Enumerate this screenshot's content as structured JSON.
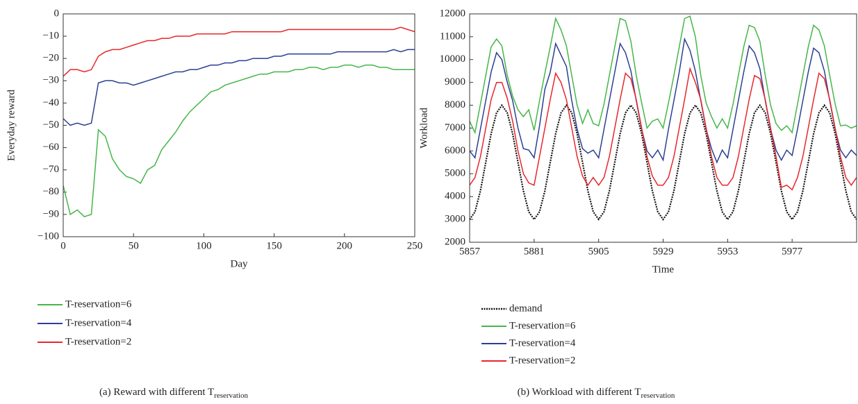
{
  "chart_data": [
    {
      "type": "line",
      "xlabel": "Day",
      "ylabel": "Everyday reward",
      "caption": {
        "text": "(a)  Reward with different T",
        "subscript": "reservation"
      },
      "legend": "below",
      "xlim": [
        0,
        250
      ],
      "xticks": [
        0,
        50,
        100,
        150,
        200,
        250
      ],
      "ylim": [
        -100,
        0
      ],
      "yticks": [
        {
          "value": -100,
          "label": "−100"
        },
        {
          "value": -90,
          "label": "−90"
        },
        {
          "value": -80,
          "label": "−80"
        },
        {
          "value": -70,
          "label": "−70"
        },
        {
          "value": -60,
          "label": "−60"
        },
        {
          "value": -50,
          "label": "−50"
        },
        {
          "value": -40,
          "label": "−40"
        },
        {
          "value": -30,
          "label": "−30"
        },
        {
          "value": -20,
          "label": "−20"
        },
        {
          "value": -10,
          "label": "−10"
        },
        0
      ],
      "x": [
        0,
        5,
        10,
        15,
        20,
        25,
        30,
        35,
        40,
        45,
        50,
        55,
        60,
        65,
        70,
        75,
        80,
        85,
        90,
        95,
        100,
        105,
        110,
        115,
        120,
        125,
        130,
        135,
        140,
        145,
        150,
        155,
        160,
        165,
        170,
        175,
        180,
        185,
        190,
        195,
        200,
        205,
        210,
        215,
        220,
        225,
        230,
        235,
        240,
        245,
        250
      ],
      "series": [
        {
          "name": "T-reservation=6",
          "color": "#46b649",
          "style": "solid",
          "values": [
            -77,
            -90,
            -88,
            -91,
            -90,
            -52,
            -55,
            -65,
            -70,
            -73,
            -74,
            -76,
            -70,
            -68,
            -61,
            -57,
            -53,
            -48,
            -44,
            -41,
            -38,
            -35,
            -34,
            -32,
            -31,
            -30,
            -29,
            -28,
            -27,
            -27,
            -26,
            -26,
            -26,
            -25,
            -25,
            -24,
            -24,
            -25,
            -24,
            -24,
            -23,
            -23,
            -24,
            -23,
            -23,
            -24,
            -24,
            -25,
            -25,
            -25,
            -25
          ]
        },
        {
          "name": "T-reservation=4",
          "color": "#2b3f93",
          "style": "solid",
          "values": [
            -47,
            -50,
            -49,
            -50,
            -49,
            -31,
            -30,
            -30,
            -31,
            -31,
            -32,
            -31,
            -30,
            -29,
            -28,
            -27,
            -26,
            -26,
            -25,
            -25,
            -24,
            -23,
            -23,
            -22,
            -22,
            -21,
            -21,
            -20,
            -20,
            -20,
            -19,
            -19,
            -18,
            -18,
            -18,
            -18,
            -18,
            -18,
            -18,
            -17,
            -17,
            -17,
            -17,
            -17,
            -17,
            -17,
            -17,
            -16,
            -17,
            -16,
            -16
          ]
        },
        {
          "name": "T-reservation=2",
          "color": "#e8262a",
          "style": "solid",
          "values": [
            -28,
            -25,
            -25,
            -26,
            -25,
            -19,
            -17,
            -16,
            -16,
            -15,
            -14,
            -13,
            -12,
            -12,
            -11,
            -11,
            -10,
            -10,
            -10,
            -9,
            -9,
            -9,
            -9,
            -9,
            -8,
            -8,
            -8,
            -8,
            -8,
            -8,
            -8,
            -8,
            -7,
            -7,
            -7,
            -7,
            -7,
            -7,
            -7,
            -7,
            -7,
            -7,
            -7,
            -7,
            -7,
            -7,
            -7,
            -7,
            -6,
            -7,
            -8
          ]
        }
      ]
    },
    {
      "type": "line",
      "xlabel": "Time",
      "ylabel": "Workload",
      "caption": {
        "text": "(b)  Workload with different T",
        "subscript": "reservation"
      },
      "legend": "below",
      "xlim": [
        5857,
        6001
      ],
      "xticks": [
        5857,
        5881,
        5905,
        5929,
        5953,
        5977
      ],
      "ylim": [
        2000,
        12000
      ],
      "yticks": [
        2000,
        3000,
        4000,
        5000,
        6000,
        7000,
        8000,
        9000,
        10000,
        11000,
        12000
      ],
      "x": [
        5857,
        5859,
        5861,
        5863,
        5865,
        5867,
        5869,
        5871,
        5873,
        5875,
        5877,
        5879,
        5881,
        5883,
        5885,
        5887,
        5889,
        5891,
        5893,
        5895,
        5897,
        5899,
        5901,
        5903,
        5905,
        5907,
        5909,
        5911,
        5913,
        5915,
        5917,
        5919,
        5921,
        5923,
        5925,
        5927,
        5929,
        5931,
        5933,
        5935,
        5937,
        5939,
        5941,
        5943,
        5945,
        5947,
        5949,
        5951,
        5953,
        5955,
        5957,
        5959,
        5961,
        5963,
        5965,
        5967,
        5969,
        5971,
        5973,
        5975,
        5977,
        5979,
        5981,
        5983,
        5985,
        5987,
        5989,
        5991,
        5993,
        5995,
        5997,
        5999,
        6001
      ],
      "series": [
        {
          "name": "demand",
          "color": "#111111",
          "style": "dotted",
          "values": [
            3000,
            3335,
            4250,
            5500,
            6750,
            7665,
            8000,
            7665,
            6750,
            5500,
            4250,
            3335,
            3000,
            3335,
            4250,
            5500,
            6750,
            7665,
            8000,
            7665,
            6750,
            5500,
            4250,
            3335,
            3000,
            3335,
            4250,
            5500,
            6750,
            7665,
            8000,
            7665,
            6750,
            5500,
            4250,
            3335,
            3000,
            3335,
            4250,
            5500,
            6750,
            7665,
            8000,
            7665,
            6750,
            5500,
            4250,
            3335,
            3000,
            3335,
            4250,
            5500,
            6750,
            7665,
            8000,
            7665,
            6750,
            5500,
            4250,
            3335,
            3000,
            3335,
            4250,
            5500,
            6750,
            7665,
            8000,
            7665,
            6750,
            5500,
            4250,
            3335,
            3000
          ]
        },
        {
          "name": "T-reservation=6",
          "color": "#46b649",
          "style": "solid",
          "values": [
            7300,
            6800,
            8050,
            9300,
            10550,
            10900,
            10600,
            9300,
            8400,
            7800,
            7500,
            7800,
            6900,
            8200,
            9400,
            10550,
            11800,
            11300,
            10600,
            9300,
            8000,
            7200,
            7800,
            7200,
            7100,
            8050,
            9300,
            10550,
            11800,
            11700,
            10800,
            9300,
            8100,
            7000,
            7300,
            7400,
            7000,
            8100,
            9300,
            10550,
            11800,
            11900,
            11000,
            9300,
            8100,
            7500,
            7000,
            7400,
            7000,
            8050,
            9300,
            10550,
            11500,
            11400,
            10800,
            9300,
            8000,
            7200,
            6900,
            7100,
            6800,
            8050,
            9300,
            10550,
            11500,
            11300,
            10600,
            9300,
            8050,
            7100,
            7135,
            7000,
            7100
          ]
        },
        {
          "name": "T-reservation=4",
          "color": "#2b3f93",
          "style": "solid",
          "values": [
            6000,
            5700,
            6950,
            8200,
            9450,
            10300,
            10000,
            9000,
            8200,
            7000,
            6100,
            6035,
            5700,
            7100,
            8700,
            9450,
            10700,
            10200,
            9700,
            8200,
            6950,
            6100,
            5900,
            6035,
            5700,
            6950,
            8200,
            9450,
            10700,
            10300,
            9500,
            8200,
            6950,
            6000,
            5700,
            6035,
            5600,
            6950,
            8200,
            9450,
            10900,
            10400,
            9500,
            8200,
            6950,
            6100,
            5500,
            6035,
            5700,
            6950,
            8200,
            9450,
            10600,
            10300,
            9600,
            8200,
            6950,
            6035,
            5600,
            6035,
            5800,
            6950,
            8200,
            9450,
            10500,
            10300,
            9500,
            8200,
            6950,
            6035,
            5700,
            6035,
            5800
          ]
        },
        {
          "name": "T-reservation=2",
          "color": "#e8262a",
          "style": "solid",
          "values": [
            4500,
            4835,
            5750,
            7000,
            8250,
            9000,
            9000,
            8300,
            7300,
            6000,
            5000,
            4600,
            4500,
            5750,
            7000,
            8250,
            9400,
            9000,
            8250,
            7000,
            5750,
            4900,
            4500,
            4835,
            4500,
            4835,
            5750,
            7000,
            8250,
            9400,
            9165,
            8250,
            7000,
            5750,
            4900,
            4500,
            4500,
            4835,
            5750,
            7000,
            8250,
            9600,
            9000,
            8250,
            7000,
            5750,
            4835,
            4500,
            4500,
            4835,
            5750,
            7000,
            8250,
            9300,
            9165,
            8250,
            7000,
            5750,
            4400,
            4500,
            4300,
            4835,
            5750,
            7000,
            8250,
            9400,
            9165,
            8250,
            7000,
            5750,
            4835,
            4500,
            4835
          ]
        }
      ]
    }
  ]
}
